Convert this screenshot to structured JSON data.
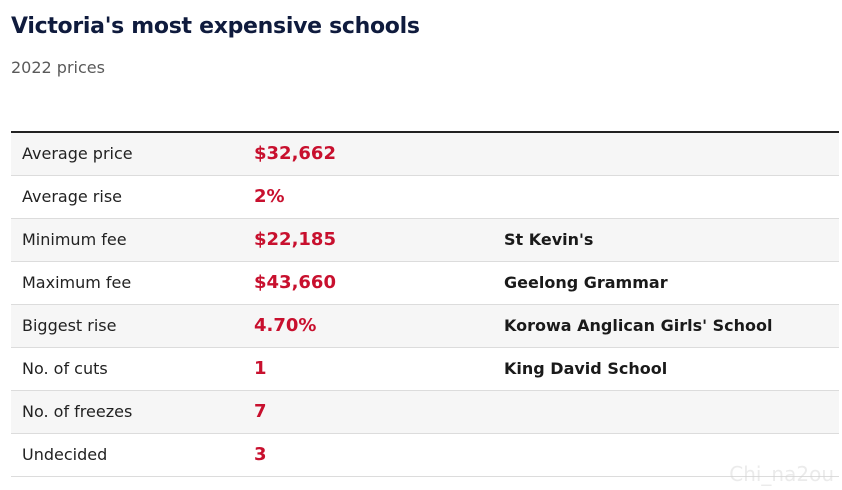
{
  "header": {
    "title": "Victoria's most expensive schools",
    "subtitle": "2022 prices"
  },
  "table": {
    "rows": [
      {
        "label": "Average price",
        "value": "$32,662",
        "school": ""
      },
      {
        "label": "Average rise",
        "value": "2%",
        "school": ""
      },
      {
        "label": "Minimum fee",
        "value": "$22,185",
        "school": "St Kevin's"
      },
      {
        "label": "Maximum fee",
        "value": "$43,660",
        "school": "Geelong Grammar"
      },
      {
        "label": "Biggest rise",
        "value": "4.70%",
        "school": "Korowa Anglican Girls' School"
      },
      {
        "label": "No. of cuts",
        "value": "1",
        "school": "King David School"
      },
      {
        "label": "No. of freezes",
        "value": "7",
        "school": ""
      },
      {
        "label": "Undecided",
        "value": "3",
        "school": ""
      }
    ]
  },
  "watermark": "Chi_na2ou",
  "colors": {
    "title": "#0f1b3d",
    "value_accent": "#c8102e",
    "row_stripe": "#f6f6f6",
    "top_rule": "#222222"
  }
}
